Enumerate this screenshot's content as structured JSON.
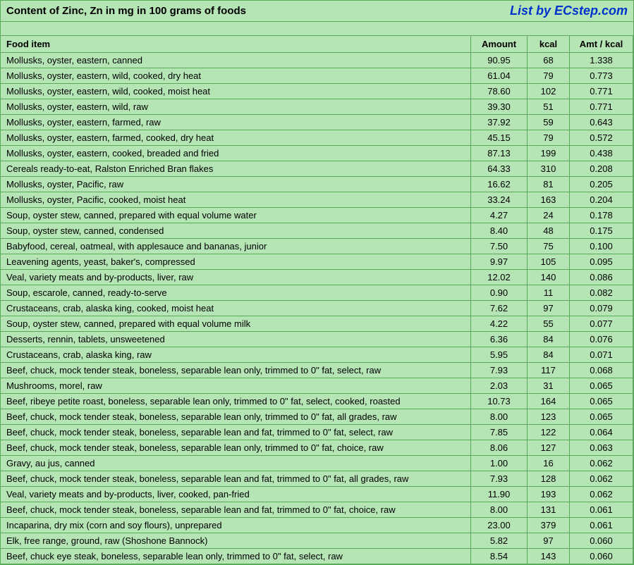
{
  "header": {
    "title": "Content of Zinc, Zn in mg in 100 grams of foods",
    "attribution": "List by ECstep.com"
  },
  "table": {
    "columns": [
      "Food item",
      "Amount",
      "kcal",
      "Amt / kcal"
    ],
    "rows": [
      [
        "Mollusks, oyster, eastern, canned",
        "90.95",
        "68",
        "1.338"
      ],
      [
        "Mollusks, oyster, eastern, wild, cooked, dry heat",
        "61.04",
        "79",
        "0.773"
      ],
      [
        "Mollusks, oyster, eastern, wild, cooked, moist heat",
        "78.60",
        "102",
        "0.771"
      ],
      [
        "Mollusks, oyster, eastern, wild, raw",
        "39.30",
        "51",
        "0.771"
      ],
      [
        "Mollusks, oyster, eastern, farmed, raw",
        "37.92",
        "59",
        "0.643"
      ],
      [
        "Mollusks, oyster, eastern, farmed, cooked, dry heat",
        "45.15",
        "79",
        "0.572"
      ],
      [
        "Mollusks, oyster, eastern, cooked, breaded and fried",
        "87.13",
        "199",
        "0.438"
      ],
      [
        "Cereals ready-to-eat, Ralston Enriched Bran flakes",
        "64.33",
        "310",
        "0.208"
      ],
      [
        "Mollusks, oyster, Pacific, raw",
        "16.62",
        "81",
        "0.205"
      ],
      [
        "Mollusks, oyster, Pacific, cooked, moist heat",
        "33.24",
        "163",
        "0.204"
      ],
      [
        "Soup, oyster stew, canned, prepared with equal volume water",
        "4.27",
        "24",
        "0.178"
      ],
      [
        "Soup, oyster stew, canned, condensed",
        "8.40",
        "48",
        "0.175"
      ],
      [
        "Babyfood, cereal, oatmeal, with applesauce and bananas, junior",
        "7.50",
        "75",
        "0.100"
      ],
      [
        "Leavening agents, yeast, baker's, compressed",
        "9.97",
        "105",
        "0.095"
      ],
      [
        "Veal, variety meats and by-products, liver, raw",
        "12.02",
        "140",
        "0.086"
      ],
      [
        "Soup, escarole, canned, ready-to-serve",
        "0.90",
        "11",
        "0.082"
      ],
      [
        "Crustaceans, crab, alaska king, cooked, moist heat",
        "7.62",
        "97",
        "0.079"
      ],
      [
        "Soup, oyster stew, canned, prepared with equal volume milk",
        "4.22",
        "55",
        "0.077"
      ],
      [
        "Desserts, rennin, tablets, unsweetened",
        "6.36",
        "84",
        "0.076"
      ],
      [
        "Crustaceans, crab, alaska king, raw",
        "5.95",
        "84",
        "0.071"
      ],
      [
        "Beef, chuck, mock tender steak, boneless, separable lean only, trimmed to 0\" fat, select, raw",
        "7.93",
        "117",
        "0.068"
      ],
      [
        "Mushrooms, morel, raw",
        "2.03",
        "31",
        "0.065"
      ],
      [
        "Beef, ribeye petite roast, boneless, separable lean only, trimmed to 0\" fat, select, cooked, roasted",
        "10.73",
        "164",
        "0.065"
      ],
      [
        "Beef, chuck, mock tender steak, boneless, separable lean only, trimmed to 0\" fat, all grades, raw",
        "8.00",
        "123",
        "0.065"
      ],
      [
        "Beef, chuck, mock tender steak, boneless, separable lean and fat, trimmed to 0\" fat, select, raw",
        "7.85",
        "122",
        "0.064"
      ],
      [
        "Beef, chuck, mock tender steak, boneless, separable lean only, trimmed to 0\" fat, choice, raw",
        "8.06",
        "127",
        "0.063"
      ],
      [
        "Gravy, au jus, canned",
        "1.00",
        "16",
        "0.062"
      ],
      [
        "Beef, chuck, mock tender steak, boneless, separable lean and fat, trimmed to 0\" fat, all grades, raw",
        "7.93",
        "128",
        "0.062"
      ],
      [
        "Veal, variety meats and by-products, liver, cooked, pan-fried",
        "11.90",
        "193",
        "0.062"
      ],
      [
        "Beef, chuck, mock tender steak, boneless, separable lean and fat, trimmed to 0\" fat, choice, raw",
        "8.00",
        "131",
        "0.061"
      ],
      [
        "Incaparina, dry mix (corn and soy flours), unprepared",
        "23.00",
        "379",
        "0.061"
      ],
      [
        "Elk, free range, ground, raw (Shoshone Bannock)",
        "5.82",
        "97",
        "0.060"
      ],
      [
        "Beef, chuck eye steak, boneless, separable lean only, trimmed to 0\" fat, select, raw",
        "8.54",
        "143",
        "0.060"
      ]
    ]
  },
  "colors": {
    "background": "#b5e4b5",
    "border": "#5aa85a",
    "text": "#000000",
    "attribution": "#0033cc"
  }
}
